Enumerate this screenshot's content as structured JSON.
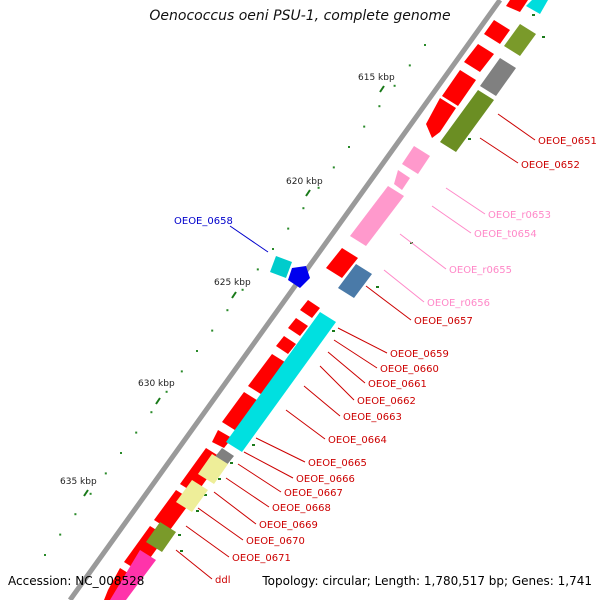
{
  "title": "Oenococcus oeni PSU-1, complete genome",
  "footer": {
    "accession": "Accession: NC_008528",
    "summary": "Topology: circular; Length: 1,780,517 bp; Genes: 1,741"
  },
  "colors": {
    "backbone": "#9a9a9a",
    "cds": "#ff0000",
    "trna": "#ff99cc",
    "tick": "#1a7a1a",
    "label_red": "#cc0000",
    "label_pink": "#ff88c8",
    "label_blue": "#0000cc"
  },
  "ticks": [
    {
      "label": "615 kbp"
    },
    {
      "label": "620 kbp"
    },
    {
      "label": "625 kbp"
    },
    {
      "label": "630 kbp"
    },
    {
      "label": "635 kbp"
    }
  ],
  "genes": [
    {
      "label": "OEOE_0651",
      "color": "#cc0000"
    },
    {
      "label": "OEOE_0652",
      "color": "#cc0000"
    },
    {
      "label": "OEOE_r0653",
      "color": "#ff88c8"
    },
    {
      "label": "OEOE_t0654",
      "color": "#ff88c8"
    },
    {
      "label": "OEOE_r0655",
      "color": "#ff88c8"
    },
    {
      "label": "OEOE_r0656",
      "color": "#ff88c8"
    },
    {
      "label": "OEOE_0657",
      "color": "#cc0000"
    },
    {
      "label": "OEOE_0658",
      "color": "#0000cc"
    },
    {
      "label": "OEOE_0659",
      "color": "#cc0000"
    },
    {
      "label": "OEOE_0660",
      "color": "#cc0000"
    },
    {
      "label": "OEOE_0661",
      "color": "#cc0000"
    },
    {
      "label": "OEOE_0662",
      "color": "#cc0000"
    },
    {
      "label": "OEOE_0663",
      "color": "#cc0000"
    },
    {
      "label": "OEOE_0664",
      "color": "#cc0000"
    },
    {
      "label": "OEOE_0665",
      "color": "#cc0000"
    },
    {
      "label": "OEOE_0666",
      "color": "#cc0000"
    },
    {
      "label": "OEOE_0667",
      "color": "#cc0000"
    },
    {
      "label": "OEOE_0668",
      "color": "#cc0000"
    },
    {
      "label": "OEOE_0669",
      "color": "#cc0000"
    },
    {
      "label": "OEOE_0670",
      "color": "#cc0000"
    },
    {
      "label": "OEOE_0671",
      "color": "#cc0000"
    },
    {
      "label": "ddl",
      "color": "#cc0000"
    }
  ]
}
